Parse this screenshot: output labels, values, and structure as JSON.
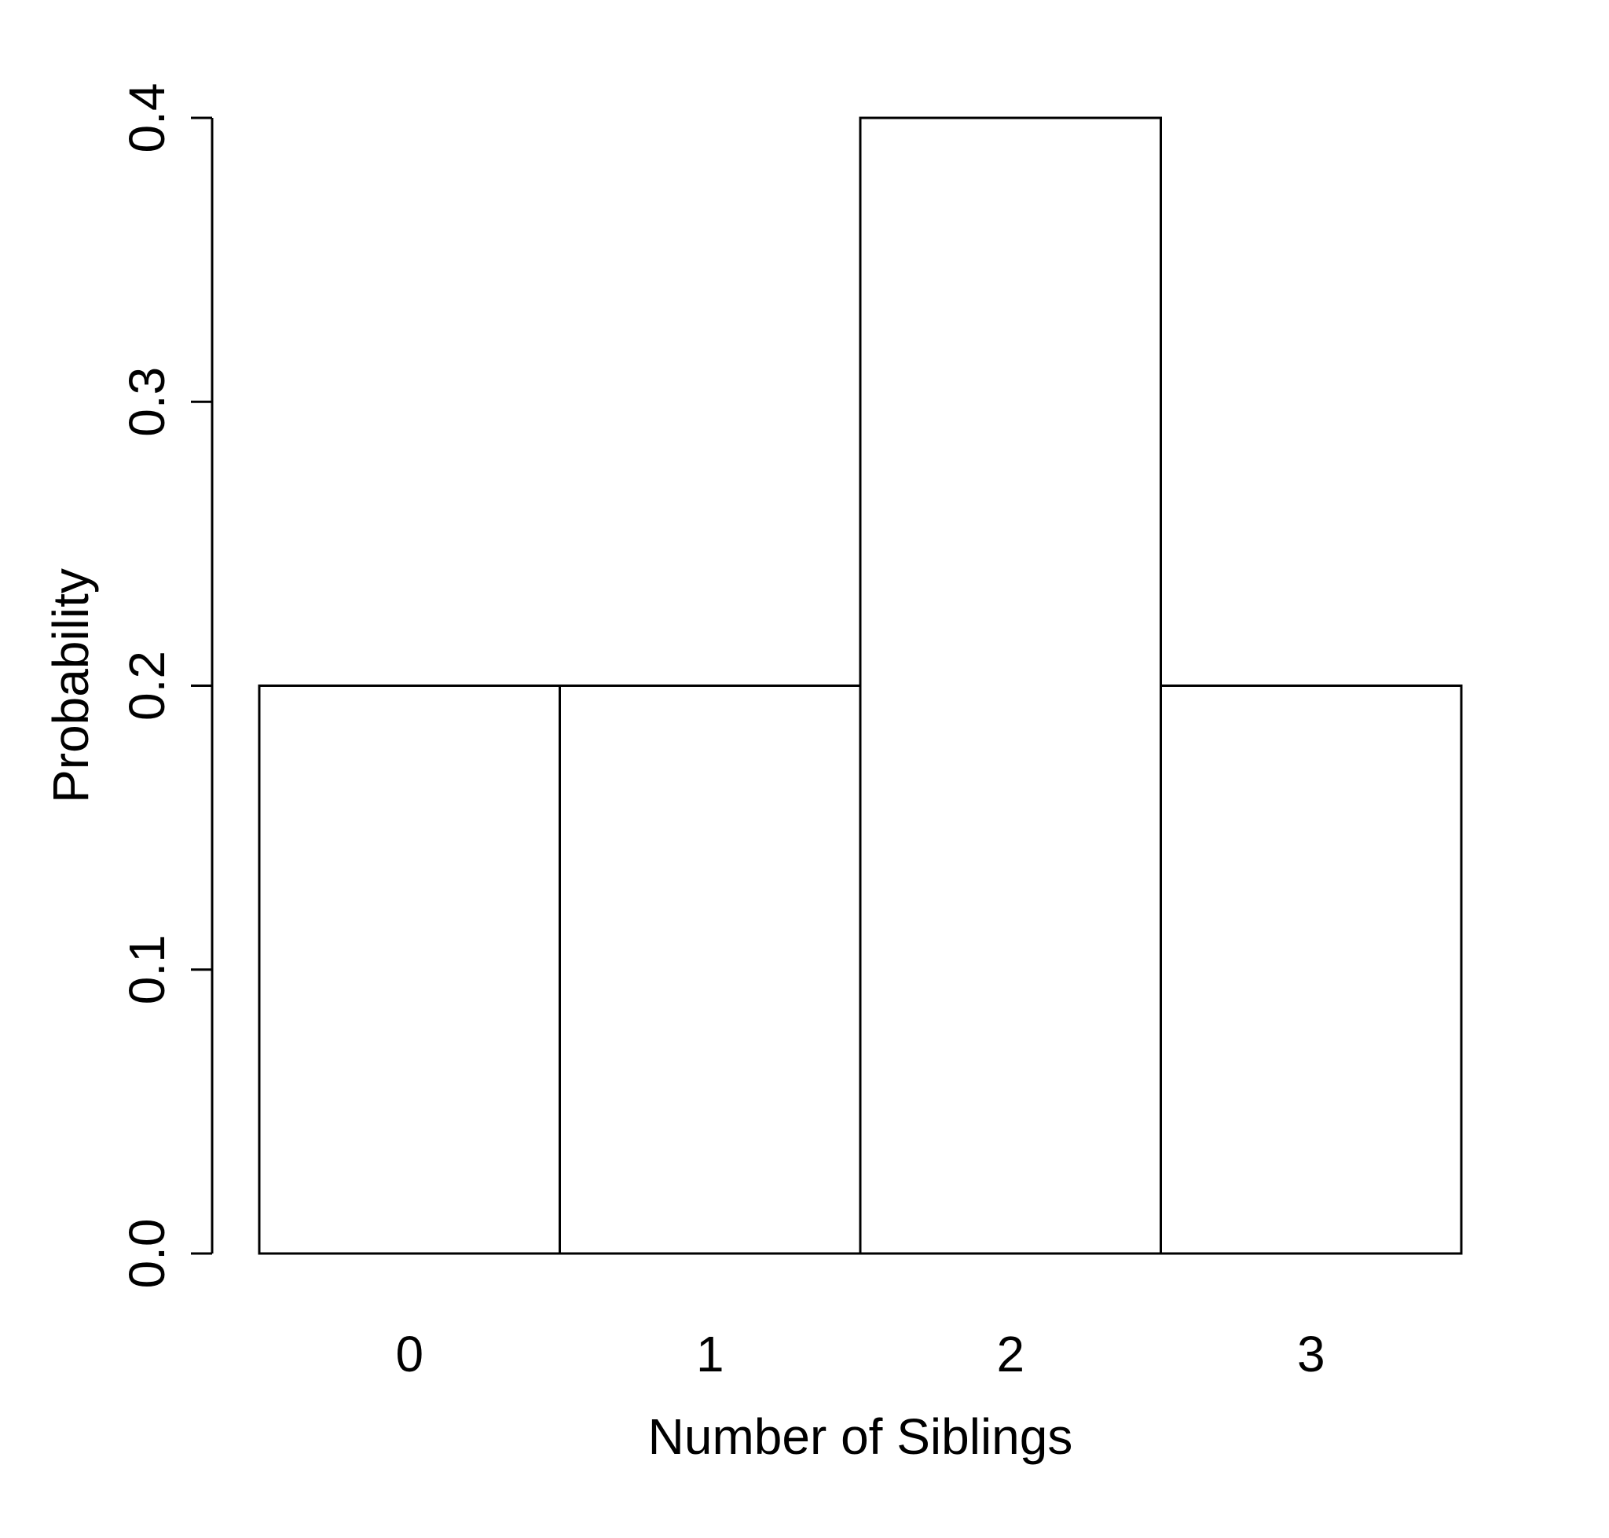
{
  "chart_data": {
    "type": "bar",
    "style": "probability-histogram",
    "title": "",
    "xlabel": "Number of Siblings",
    "ylabel": "Probability",
    "categories": [
      "0",
      "1",
      "2",
      "3"
    ],
    "values": [
      0.2,
      0.2,
      0.4,
      0.2
    ],
    "series": [
      {
        "name": "Probability",
        "values": [
          0.2,
          0.2,
          0.4,
          0.2
        ]
      }
    ],
    "ylim": [
      0,
      0.4
    ],
    "yticks": [
      {
        "value": 0.0,
        "label": "0.0"
      },
      {
        "value": 0.1,
        "label": "0.1"
      },
      {
        "value": 0.2,
        "label": "0.2"
      },
      {
        "value": 0.3,
        "label": "0.3"
      },
      {
        "value": 0.4,
        "label": "0.4"
      }
    ],
    "grid": false,
    "legend_position": "none",
    "bar_gap": 0,
    "y_tick_label_rotation": -90,
    "colors": {
      "background": "#ffffff",
      "bar_fill": "#ffffff",
      "bar_stroke": "#000000",
      "axis": "#000000",
      "text": "#000000"
    }
  }
}
